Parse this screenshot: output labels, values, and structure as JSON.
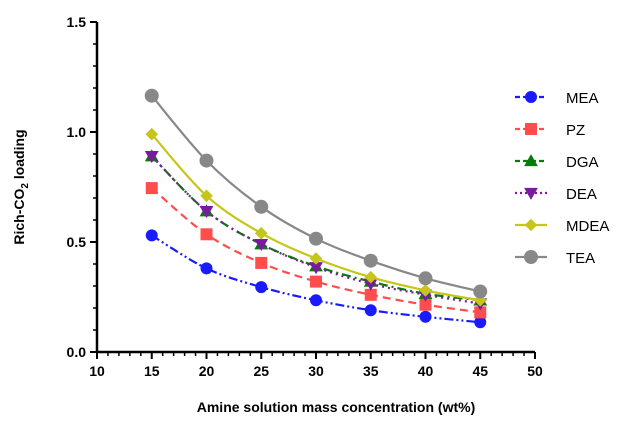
{
  "chart_data": {
    "type": "line",
    "xlabel": "Amine solution mass concentration (wt%)",
    "ylabel": {
      "prefix": "Rich-CO",
      "sub": "2",
      "suffix": " loading"
    },
    "xlim": [
      10,
      50
    ],
    "ylim": [
      0,
      1.5
    ],
    "x_ticks": [
      10,
      15,
      20,
      25,
      30,
      35,
      40,
      45,
      50
    ],
    "x_tick_labels": [
      "10",
      "15",
      "20",
      "25",
      "30",
      "35",
      "40",
      "45",
      "50"
    ],
    "y_ticks": [
      0,
      0.5,
      1.0,
      1.5
    ],
    "y_tick_labels": [
      "0.0",
      "0.5",
      "1.0",
      "1.5"
    ],
    "grid": false,
    "legend_position": "right",
    "x": [
      15,
      20,
      25,
      30,
      35,
      40,
      45
    ],
    "series": [
      {
        "name": "MEA",
        "values": [
          0.53,
          0.38,
          0.295,
          0.235,
          0.19,
          0.16,
          0.135
        ],
        "color": "#1a1aff",
        "marker": "circle",
        "line": "dash-dot-dot"
      },
      {
        "name": "PZ",
        "values": [
          0.745,
          0.535,
          0.405,
          0.32,
          0.26,
          0.215,
          0.18
        ],
        "color": "#ff4d4d",
        "marker": "square",
        "line": "dashed"
      },
      {
        "name": "DGA",
        "values": [
          0.89,
          0.64,
          0.49,
          0.39,
          0.32,
          0.265,
          0.235
        ],
        "color": "#0a7a0a",
        "marker": "triangle-up",
        "line": "dash-dot"
      },
      {
        "name": "DEA",
        "values": [
          0.89,
          0.64,
          0.49,
          0.385,
          0.31,
          0.26,
          0.22
        ],
        "color": "#7a1a9e",
        "marker": "triangle-down",
        "line": "dotted"
      },
      {
        "name": "MDEA",
        "values": [
          0.99,
          0.71,
          0.54,
          0.425,
          0.34,
          0.28,
          0.235
        ],
        "color": "#c5c51a",
        "marker": "diamond",
        "line": "solid"
      },
      {
        "name": "TEA",
        "values": [
          1.165,
          0.87,
          0.66,
          0.515,
          0.415,
          0.335,
          0.275
        ],
        "color": "#888888",
        "marker": "circle",
        "line": "solid"
      }
    ]
  }
}
